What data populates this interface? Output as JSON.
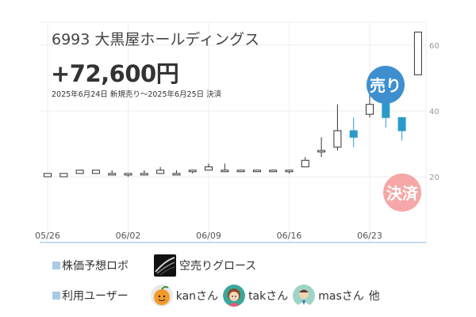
{
  "stock": {
    "title": "6993 大黒屋ホールディングス"
  },
  "result": {
    "profit": "+72,600円",
    "period": "2025年6月24日 新規売り〜2025年6月25日 決済"
  },
  "badges": {
    "sell": "売り",
    "settle": "決済"
  },
  "footer": {
    "robo_label": "株価予想ロボ",
    "robo_name": "空売りグロース",
    "users_label": "利用ユーザー",
    "users": [
      "kanさん",
      "takさん",
      "masさん"
    ],
    "users_suffix": "他"
  },
  "colors": {
    "up": "#ffffff",
    "down": "#2b9acb",
    "sell_badge": "#3d8fd0",
    "settle_badge": "#f6a7a7",
    "grid": "#eeeeee",
    "axis": "#9fc5e8"
  },
  "chart_data": {
    "type": "candlestick",
    "ylim": [
      0,
      67
    ],
    "yticks": [
      20,
      40,
      60
    ],
    "xticks": [
      {
        "label": "05/26",
        "index": 0
      },
      {
        "label": "06/02",
        "index": 5
      },
      {
        "label": "06/09",
        "index": 10
      },
      {
        "label": "06/16",
        "index": 15
      },
      {
        "label": "06/23",
        "index": 20
      }
    ],
    "candles": [
      {
        "date": "05/26",
        "open": 20,
        "close": 21,
        "high": 21,
        "low": 20
      },
      {
        "date": "05/27",
        "open": 20,
        "close": 21,
        "high": 21,
        "low": 20
      },
      {
        "date": "05/28",
        "open": 21,
        "close": 22,
        "high": 22,
        "low": 21
      },
      {
        "date": "05/29",
        "open": 21,
        "close": 22,
        "high": 22,
        "low": 21
      },
      {
        "date": "05/30",
        "open": 21,
        "close": 21,
        "high": 22,
        "low": 21
      },
      {
        "date": "06/02",
        "open": 21,
        "close": 21,
        "high": 21,
        "low": 20
      },
      {
        "date": "06/03",
        "open": 21,
        "close": 21,
        "high": 22,
        "low": 21
      },
      {
        "date": "06/04",
        "open": 21,
        "close": 22,
        "high": 23,
        "low": 21
      },
      {
        "date": "06/05",
        "open": 21,
        "close": 21,
        "high": 22,
        "low": 21
      },
      {
        "date": "06/06",
        "open": 22,
        "close": 22,
        "high": 22,
        "low": 21
      },
      {
        "date": "06/09",
        "open": 22,
        "close": 23,
        "high": 24,
        "low": 22
      },
      {
        "date": "06/10",
        "open": 22,
        "close": 22,
        "high": 24,
        "low": 22
      },
      {
        "date": "06/11",
        "open": 22,
        "close": 22,
        "high": 22,
        "low": 22
      },
      {
        "date": "06/12",
        "open": 22,
        "close": 22,
        "high": 22,
        "low": 22
      },
      {
        "date": "06/13",
        "open": 22,
        "close": 22,
        "high": 22,
        "low": 22
      },
      {
        "date": "06/16",
        "open": 22,
        "close": 22,
        "high": 22,
        "low": 21
      },
      {
        "date": "06/17",
        "open": 23,
        "close": 25,
        "high": 26,
        "low": 23
      },
      {
        "date": "06/18",
        "open": 28,
        "close": 28,
        "high": 32,
        "low": 26
      },
      {
        "date": "06/19",
        "open": 29,
        "close": 34,
        "high": 42,
        "low": 28
      },
      {
        "date": "06/20",
        "open": 34,
        "close": 32,
        "high": 38,
        "low": 29
      },
      {
        "date": "06/23",
        "open": 39,
        "close": 42,
        "high": 45,
        "low": 38
      },
      {
        "date": "06/24",
        "open": 45,
        "close": 38,
        "high": 45,
        "low": 35
      },
      {
        "date": "06/25",
        "open": 38,
        "close": 34,
        "high": 38,
        "low": 31
      },
      {
        "date": "06/26",
        "open": 51,
        "close": 64,
        "high": 64,
        "low": 51
      }
    ]
  }
}
